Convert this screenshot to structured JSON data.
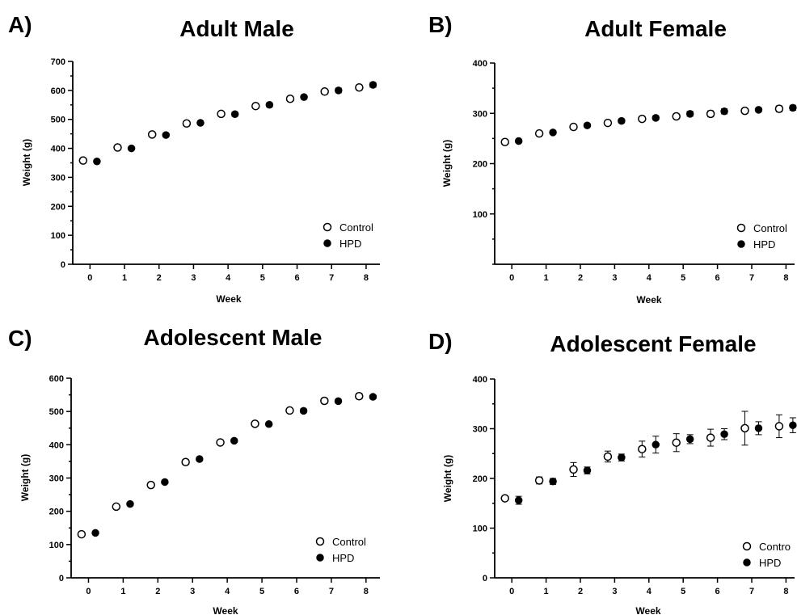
{
  "chart_data": [
    {
      "type": "scatter",
      "panel": "A)",
      "title": "Adult Male",
      "xlabel": "Week",
      "ylabel": "Weight (g)",
      "xlim": [
        -0.5,
        8.4
      ],
      "ylim": [
        0,
        700
      ],
      "xticks": [
        0,
        1,
        2,
        3,
        4,
        5,
        6,
        7,
        8
      ],
      "yticks": [
        0,
        100,
        200,
        300,
        400,
        500,
        600,
        700
      ],
      "legend": "bottom-right",
      "series": [
        {
          "name": "Control",
          "marker": "open-circle",
          "x": [
            0,
            1,
            2,
            3,
            4,
            5,
            6,
            7,
            8
          ],
          "y": [
            358,
            403,
            448,
            486,
            519,
            546,
            571,
            596,
            610
          ],
          "err": [
            5,
            6,
            6,
            7,
            7,
            7,
            8,
            8,
            8
          ]
        },
        {
          "name": "HPD",
          "marker": "filled-circle",
          "x": [
            0,
            1,
            2,
            3,
            4,
            5,
            6,
            7,
            8
          ],
          "y": [
            355,
            400,
            446,
            488,
            518,
            550,
            577,
            600,
            619
          ],
          "err": [
            5,
            5,
            6,
            6,
            7,
            7,
            7,
            8,
            8
          ]
        }
      ]
    },
    {
      "type": "scatter",
      "panel": "B)",
      "title": "Adult Female",
      "xlabel": "Week",
      "ylabel": "Weight (g)",
      "xlim": [
        -0.5,
        8.25
      ],
      "ylim": [
        0,
        400
      ],
      "xticks": [
        0,
        1,
        2,
        3,
        4,
        5,
        6,
        7,
        8
      ],
      "yticks": [
        100,
        200,
        300,
        400
      ],
      "legend": "bottom-right",
      "series": [
        {
          "name": "Control",
          "marker": "open-circle",
          "x": [
            0,
            1,
            2,
            3,
            4,
            5,
            6,
            7,
            8
          ],
          "y": [
            243,
            260,
            273,
            281,
            289,
            294,
            299,
            305,
            309
          ],
          "err": [
            3,
            4,
            5,
            5,
            5,
            5,
            6,
            5,
            6
          ]
        },
        {
          "name": "HPD",
          "marker": "filled-circle",
          "x": [
            0,
            1,
            2,
            3,
            4,
            5,
            6,
            7,
            8
          ],
          "y": [
            245,
            262,
            276,
            285,
            291,
            299,
            304,
            307,
            311
          ],
          "err": [
            3,
            3,
            4,
            4,
            4,
            5,
            5,
            4,
            5
          ]
        }
      ]
    },
    {
      "type": "scatter",
      "panel": "C)",
      "title": "Adolescent Male",
      "xlabel": "Week",
      "ylabel": "Weight (g)",
      "xlim": [
        -0.5,
        8.4
      ],
      "ylim": [
        0,
        600
      ],
      "xticks": [
        0,
        1,
        2,
        3,
        4,
        5,
        6,
        7,
        8
      ],
      "yticks": [
        0,
        100,
        200,
        300,
        400,
        500,
        600
      ],
      "legend": "bottom-right",
      "series": [
        {
          "name": "Control",
          "marker": "open-circle",
          "x": [
            0,
            1,
            2,
            3,
            4,
            5,
            6,
            7,
            8
          ],
          "y": [
            131,
            214,
            279,
            348,
            407,
            463,
            503,
            532,
            546
          ],
          "err": [
            4,
            7,
            7,
            7,
            7,
            7,
            7,
            8,
            8
          ]
        },
        {
          "name": "HPD",
          "marker": "filled-circle",
          "x": [
            0,
            1,
            2,
            3,
            4,
            5,
            6,
            7,
            8
          ],
          "y": [
            135,
            222,
            288,
            357,
            412,
            462,
            502,
            531,
            544
          ],
          "err": [
            3,
            4,
            5,
            5,
            5,
            5,
            6,
            6,
            6
          ]
        }
      ]
    },
    {
      "type": "scatter",
      "panel": "D)",
      "title": "Adolescent Female",
      "xlabel": "Week",
      "ylabel": "Weight (g)",
      "xlim": [
        -0.5,
        8.25
      ],
      "ylim": [
        0,
        400
      ],
      "xticks": [
        0,
        1,
        2,
        3,
        4,
        5,
        6,
        7,
        8
      ],
      "yticks": [
        0,
        100,
        200,
        300,
        400
      ],
      "legend": "bottom-right",
      "legend_labels": [
        "Contro",
        "HPD"
      ],
      "series": [
        {
          "name": "Control",
          "marker": "open-circle",
          "x": [
            0,
            1,
            2,
            3,
            4,
            5,
            6,
            7,
            8
          ],
          "y": [
            160,
            196,
            218,
            244,
            259,
            272,
            282,
            301,
            305
          ],
          "err": [
            4,
            7,
            14,
            11,
            16,
            18,
            17,
            34,
            23
          ]
        },
        {
          "name": "HPD",
          "marker": "filled-circle",
          "x": [
            0,
            1,
            2,
            3,
            4,
            5,
            6,
            7,
            8
          ],
          "y": [
            156,
            194,
            216,
            242,
            268,
            279,
            289,
            301,
            307
          ],
          "err": [
            8,
            6,
            7,
            7,
            17,
            9,
            11,
            13,
            15
          ]
        }
      ]
    }
  ]
}
